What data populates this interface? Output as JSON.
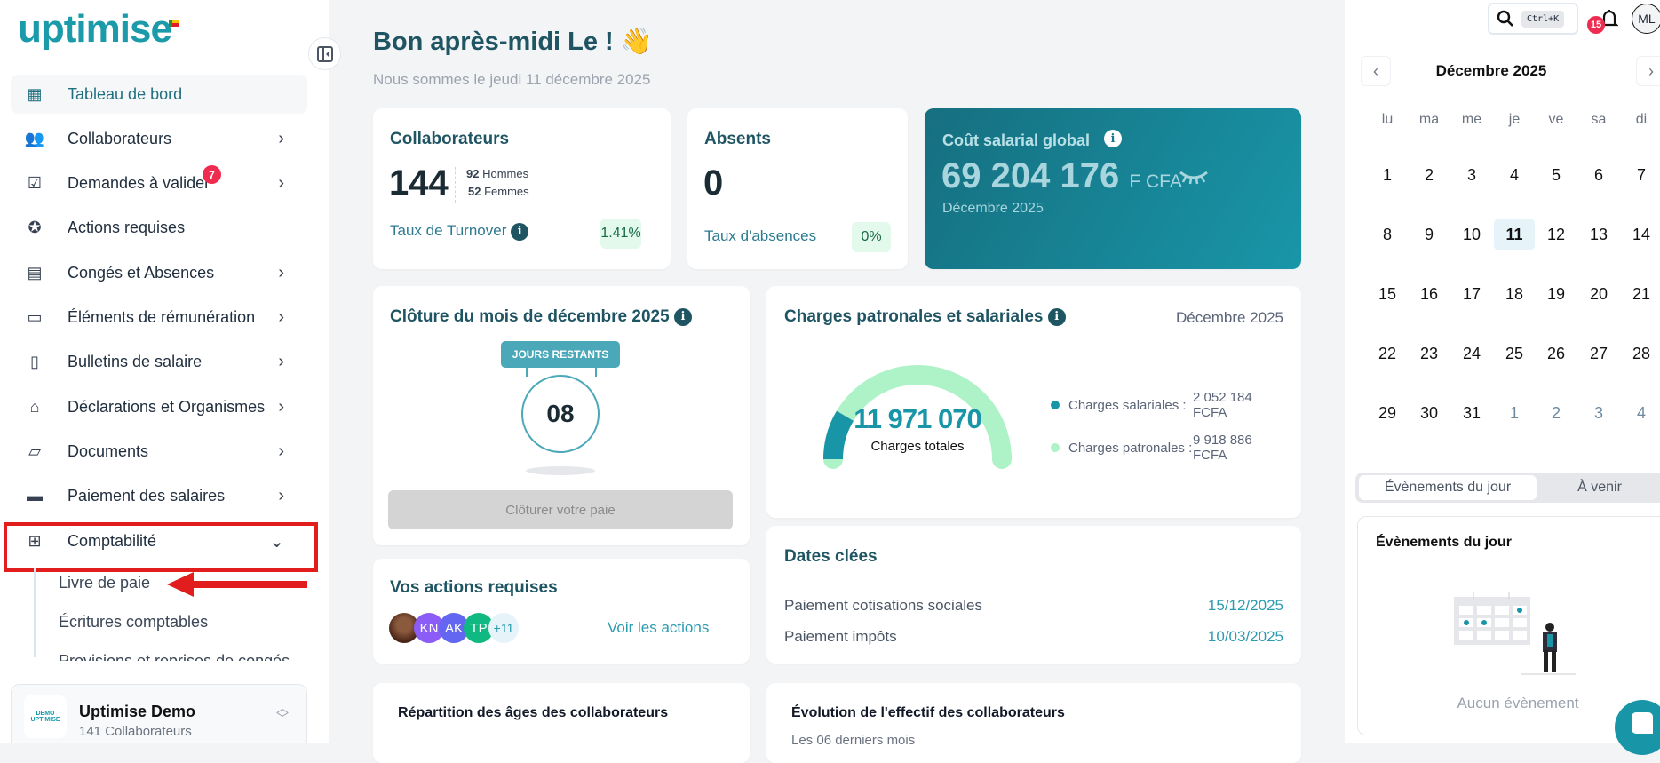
{
  "brand": {
    "logo": "uptimise"
  },
  "sidebar": {
    "items": [
      {
        "label": "Tableau de bord",
        "icon": "grid-icon"
      },
      {
        "label": "Collaborateurs",
        "icon": "users-icon"
      },
      {
        "label": "Demandes à valider",
        "icon": "checklist-icon",
        "badge": "7"
      },
      {
        "label": "Actions requises",
        "icon": "badge-check-icon"
      },
      {
        "label": "Congés et Absences",
        "icon": "calendar-icon"
      },
      {
        "label": "Éléments de rémunération",
        "icon": "id-card-icon"
      },
      {
        "label": "Bulletins de salaire",
        "icon": "receipt-icon"
      },
      {
        "label": "Déclarations et Organismes",
        "icon": "building-icon"
      },
      {
        "label": "Documents",
        "icon": "folder-icon"
      },
      {
        "label": "Paiement des salaires",
        "icon": "card-gear-icon"
      },
      {
        "label": "Comptabilité",
        "icon": "calculator-icon"
      }
    ],
    "sub_items": [
      "Livre de paie",
      "Écritures comptables",
      "Provisions et reprises de congés"
    ],
    "org": {
      "logo_text": "DEMO UPTIMISE",
      "name": "Uptimise Demo",
      "count": "141 Collaborateurs"
    }
  },
  "header": {
    "greeting": "Bon après-midi Le ! 👋",
    "date": "Nous sommes le jeudi 11 décembre 2025"
  },
  "cards": {
    "collaborateurs": {
      "title": "Collaborateurs",
      "total": "144",
      "men_n": "92",
      "men": "Hommes",
      "women_n": "52",
      "women": "Femmes",
      "turnover_label": "Taux de Turnover",
      "turnover": "1.41%"
    },
    "absents": {
      "title": "Absents",
      "total": "0",
      "rate_label": "Taux d'absences",
      "rate": "0%"
    },
    "cost": {
      "title": "Coût salarial global",
      "value": "69 204 176",
      "unit": "F CFA",
      "period": "Décembre 2025"
    },
    "cloture": {
      "title": "Clôture du mois de décembre 2025",
      "badge": "JOURS RESTANTS",
      "days": "08",
      "button": "Clôturer votre paie"
    },
    "charges": {
      "title": "Charges patronales et salariales",
      "period": "Décembre 2025",
      "total": "11 971 070",
      "total_label": "Charges totales",
      "legend": [
        {
          "label": "Charges salariales :",
          "value": "2 052 184 FCFA",
          "color": "#1b9aaa"
        },
        {
          "label": "Charges patronales :",
          "value": "9 918 886 FCFA",
          "color": "#aef2c8"
        }
      ],
      "salariales": 2052184,
      "patronales": 9918886
    },
    "actions": {
      "title": "Vos actions requises",
      "avatars": [
        "",
        "KN",
        "AK",
        "TP"
      ],
      "more": "+11",
      "link": "Voir les actions"
    },
    "dates": {
      "title": "Dates clées",
      "rows": [
        {
          "label": "Paiement cotisations sociales",
          "date": "15/12/2025"
        },
        {
          "label": "Paiement impôts",
          "date": "10/03/2025"
        }
      ]
    },
    "ages": {
      "title": "Répartition des âges des collaborateurs"
    },
    "effectif": {
      "title": "Évolution de l'effectif des collaborateurs",
      "subtitle": "Les 06 derniers mois"
    }
  },
  "topbar": {
    "shortcut": "Ctrl+K",
    "notifications": "15",
    "avatar": "ML"
  },
  "calendar": {
    "month": "Décembre 2025",
    "weekdays": [
      "lu",
      "ma",
      "me",
      "je",
      "ve",
      "sa",
      "di"
    ],
    "weeks": [
      [
        "1",
        "2",
        "3",
        "4",
        "5",
        "6",
        "7"
      ],
      [
        "8",
        "9",
        "10",
        "11",
        "12",
        "13",
        "14"
      ],
      [
        "15",
        "16",
        "17",
        "18",
        "19",
        "20",
        "21"
      ],
      [
        "22",
        "23",
        "24",
        "25",
        "26",
        "27",
        "28"
      ],
      [
        "29",
        "30",
        "31",
        "1",
        "2",
        "3",
        "4"
      ]
    ],
    "selected": "11",
    "next_month_start": "1"
  },
  "events": {
    "tabs": [
      "Évènements du jour",
      "À venir"
    ],
    "title": "Évènements du jour",
    "empty": "Aucun évènement"
  }
}
